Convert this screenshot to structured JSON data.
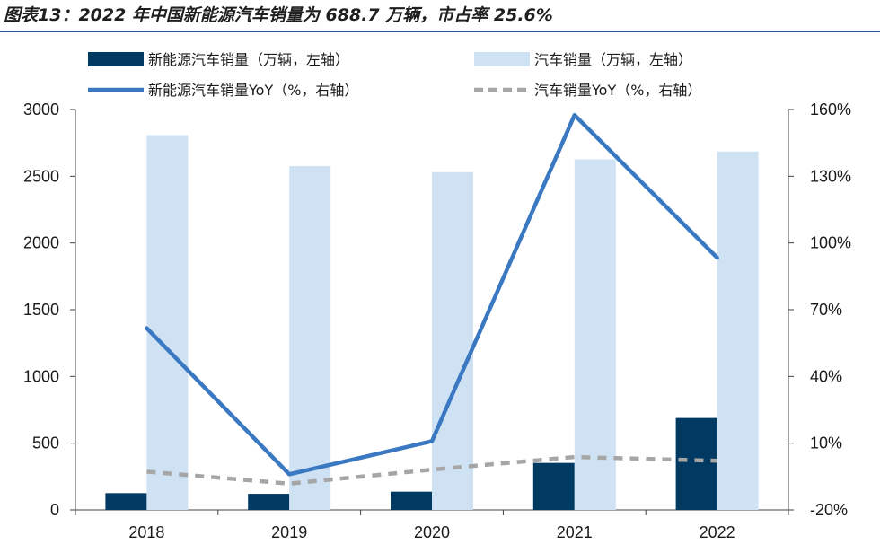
{
  "figure": {
    "title": "图表13：2022 年中国新能源汽车销量为 688.7 万辆，市占率 25.6%"
  },
  "chart_data": {
    "type": "bar",
    "categories": [
      "2018",
      "2019",
      "2020",
      "2021",
      "2022"
    ],
    "series": [
      {
        "name": "新能源汽车销量（万辆，左轴）",
        "kind": "bar",
        "axis": "left",
        "color": "#003a63",
        "values": [
          125.6,
          120.6,
          136.7,
          352.1,
          688.7
        ]
      },
      {
        "name": "汽车销量（万辆，左轴）",
        "kind": "bar",
        "axis": "left",
        "color": "#cfe2f3",
        "values": [
          2808,
          2576,
          2531,
          2627,
          2686
        ]
      },
      {
        "name": "新能源汽车销量YoY（%，右轴）",
        "kind": "line",
        "axis": "right",
        "color": "#3a78c2",
        "values": [
          61.7,
          -4.0,
          10.9,
          157.5,
          93.4
        ]
      },
      {
        "name": "汽车销量YoY（%，右轴）",
        "kind": "line-dashed",
        "axis": "right",
        "color": "#a6a6a6",
        "values": [
          -2.8,
          -8.2,
          -1.9,
          3.8,
          2.1
        ]
      }
    ],
    "y_left": {
      "min": 0,
      "max": 3000,
      "ticks": [
        0,
        500,
        1000,
        1500,
        2000,
        2500,
        3000
      ],
      "tick_labels": [
        "0",
        "500",
        "1000",
        "1500",
        "2000",
        "2500",
        "3000"
      ]
    },
    "y_right": {
      "min": -20,
      "max": 160,
      "ticks": [
        -20,
        10,
        40,
        70,
        100,
        130,
        160
      ],
      "tick_labels": [
        "-20%",
        "10%",
        "40%",
        "70%",
        "100%",
        "130%",
        "160%"
      ]
    },
    "legend_position": "top",
    "grid": false
  }
}
